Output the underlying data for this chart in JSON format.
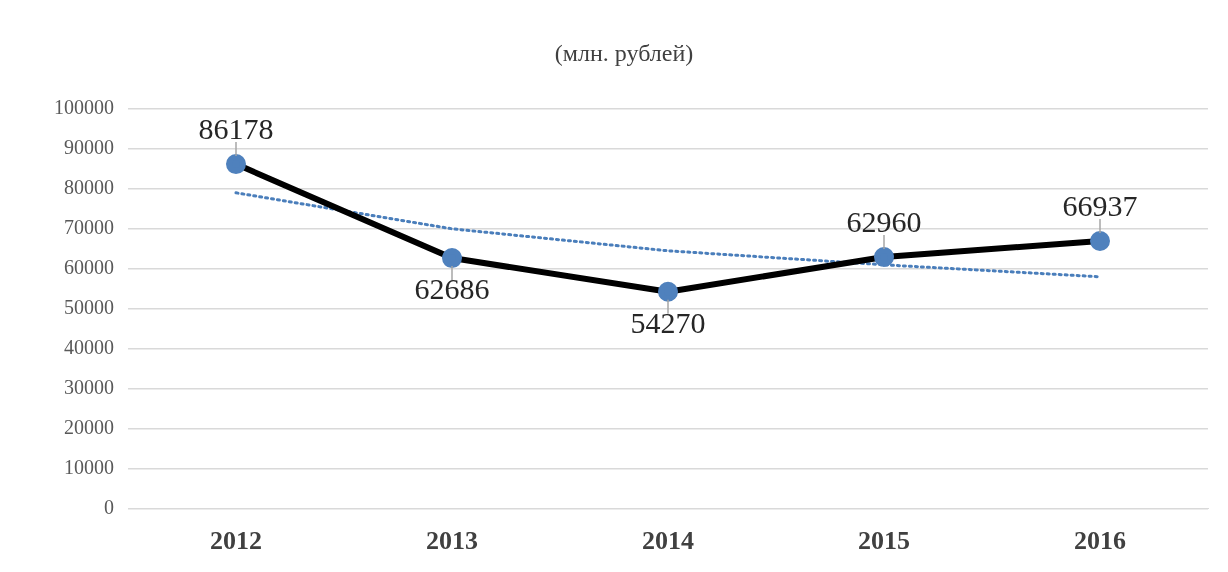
{
  "chart_data": {
    "type": "line",
    "title": "(млн. рублей)",
    "categories": [
      "2012",
      "2013",
      "2014",
      "2015",
      "2016"
    ],
    "series": [
      {
        "color": "#000000",
        "colors": [
          "#4f81bd",
          "#4f81bd",
          "#4f81bd",
          "#4f81bd",
          "#4f81bd"
        ],
        "values": [
          86178,
          62686,
          54270,
          62960,
          66937
        ],
        "value_labels": [
          "86178",
          "62686",
          "54270",
          "62960",
          "66937"
        ],
        "marker": "circle",
        "line_style": "solid"
      },
      {
        "type": "line",
        "color": "#4a7ebb",
        "values": [
          79000,
          70000,
          64500,
          61000,
          58000
        ],
        "marker": "none",
        "line_style": "dotted"
      }
    ],
    "ylim": [
      0,
      100000
    ],
    "yticks": [
      0,
      10000,
      20000,
      30000,
      40000,
      50000,
      60000,
      70000,
      80000,
      90000,
      100000
    ],
    "grid": "y",
    "legend": false
  }
}
